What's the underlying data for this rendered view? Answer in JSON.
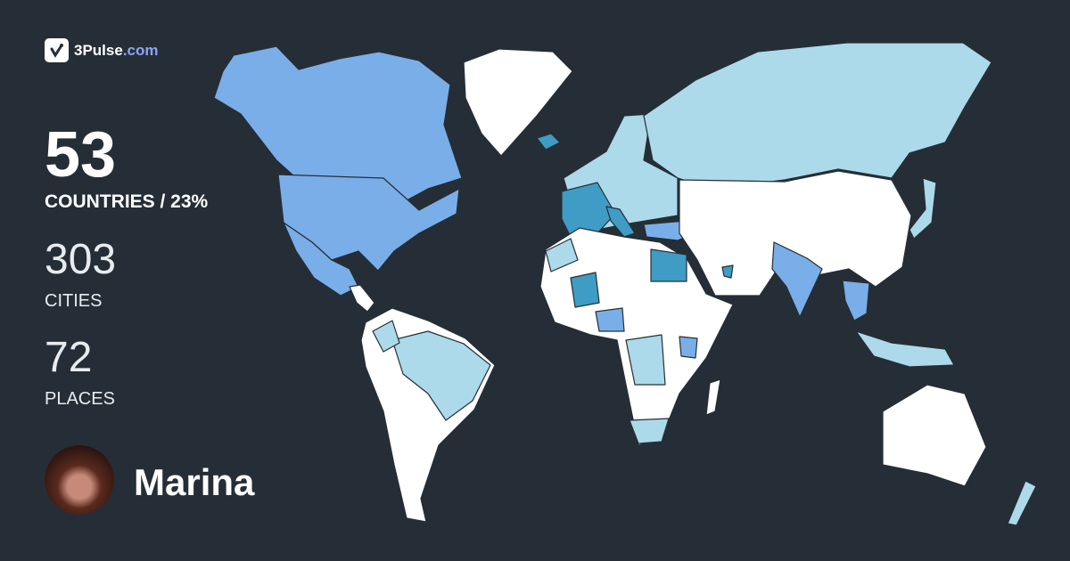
{
  "brand": {
    "name": "3Pulse",
    "domain": ".com",
    "icon": "check-pulse-icon"
  },
  "stats": {
    "countries_count": "53",
    "countries_label": "COUNTRIES / 23%",
    "countries_percent": 23,
    "cities_count": "303",
    "cities_label": "CITIES",
    "places_count": "72",
    "places_label": "PLACES"
  },
  "user": {
    "name": "Marina"
  },
  "map": {
    "colors": {
      "background": "#252e36",
      "unvisited": "#ffffff",
      "level_light": "#acdaea",
      "level_medium": "#7aaee8",
      "level_dark": "#3f9cc4"
    }
  }
}
